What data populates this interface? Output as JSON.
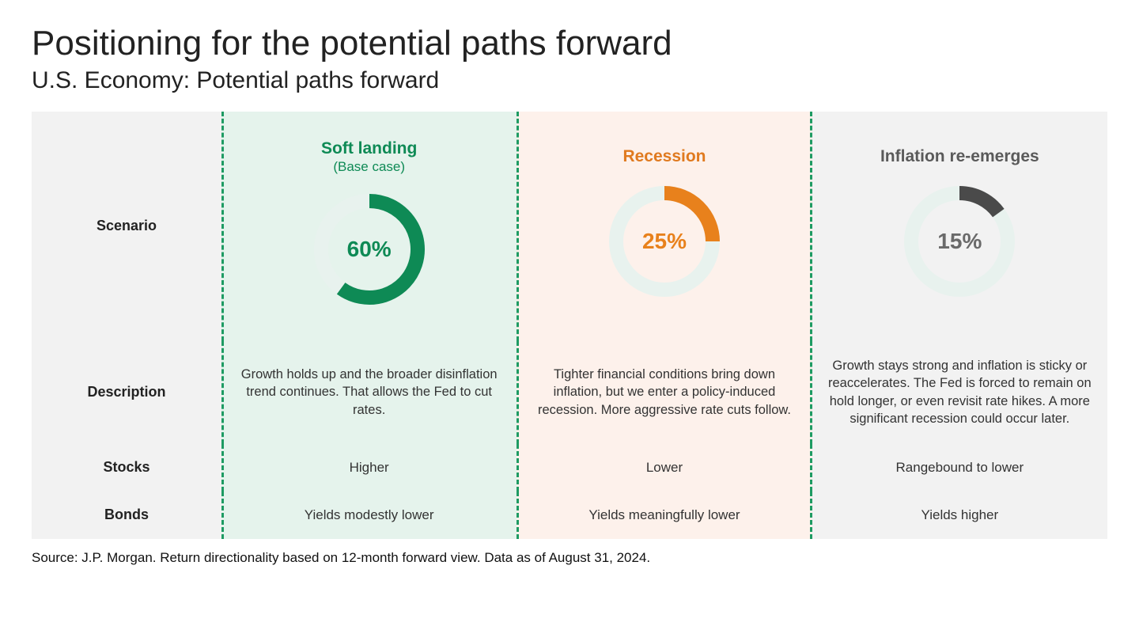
{
  "title": "Positioning for the potential paths forward",
  "subtitle": "U.S. Economy: Potential paths forward",
  "source": "Source: J.P. Morgan. Return directionality based on 12-month forward view. Data as of August 31, 2024.",
  "row_labels": {
    "scenario": "Scenario",
    "description": "Description",
    "stocks": "Stocks",
    "bonds": "Bonds"
  },
  "donut": {
    "outer_radius": 70,
    "inner_radius": 52,
    "track_color": "#e8f2ee",
    "start_angle_deg": 0,
    "label_fontsize": 28,
    "label_fontweight": 700
  },
  "colors": {
    "col_labels_bg": "#f2f2f2",
    "col_green_bg": "#e5f3ec",
    "col_pink_bg": "#fdf1eb",
    "col_gray_bg": "#f2f2f2",
    "dashed_separator": "#1e9b63"
  },
  "scenarios": [
    {
      "key": "soft_landing",
      "bg": "green",
      "title": "Soft landing",
      "subtitle": "(Base case)",
      "title_color": "#0e8a55",
      "percent": 60,
      "percent_label": "60%",
      "arc_color": "#0e8a55",
      "label_color": "#0e8a55",
      "description": "Growth holds up and the broader disinflation trend continues. That allows the Fed to cut rates.",
      "stocks": "Higher",
      "bonds": "Yields modestly lower"
    },
    {
      "key": "recession",
      "bg": "pink",
      "title": "Recession",
      "subtitle": "",
      "title_color": "#e07a1f",
      "percent": 25,
      "percent_label": "25%",
      "arc_color": "#e8811c",
      "label_color": "#e8811c",
      "description": "Tighter financial conditions bring down inflation, but we enter a policy-induced recession. More aggressive rate cuts follow.",
      "stocks": "Lower",
      "bonds": "Yields meaningfully lower"
    },
    {
      "key": "inflation",
      "bg": "gray",
      "title": "Inflation re-emerges",
      "subtitle": "",
      "title_color": "#5a5a5a",
      "percent": 15,
      "percent_label": "15%",
      "arc_color": "#4a4a4a",
      "label_color": "#6a6a6a",
      "description": "Growth stays strong and inflation is sticky or reaccelerates. The Fed is forced to remain on hold longer, or even revisit rate hikes. A more significant recession could occur later.",
      "stocks": "Rangebound to lower",
      "bonds": "Yields higher"
    }
  ]
}
